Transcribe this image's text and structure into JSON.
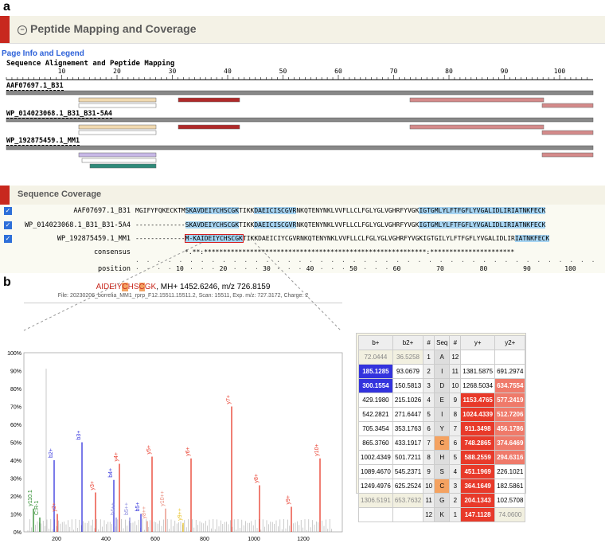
{
  "panel_a": {
    "label": "a",
    "header_title": "Peptide Mapping and Coverage",
    "page_info_link": "Page Info and Legend",
    "alignment_title": "Sequence Alignement and Peptide Mapping",
    "axis_ticks": [
      "10",
      "20",
      "30",
      "40",
      "50",
      "60",
      "70",
      "80",
      "90",
      "100"
    ],
    "protein_labels": [
      "AAF07697.1_B31",
      "WP_014023068.1_B31_B31-5A4",
      "WP_192875459.1_MM1"
    ],
    "coverage_header": "Sequence Coverage",
    "coverage_rows": [
      {
        "name": "AAF07697.1_B31",
        "seq_pre": "MGIFYFQKECKTM",
        "seq_hl1": "SKAVDEIYCHSCGK",
        "seq_mid1": "TIKK",
        "seq_hl2": "DAEICISCGVR",
        "seq_mid2": "NKQTENYNKLVVFLLCLFGLYGLVGHRFYVGK",
        "seq_hl3": "IGTGMLYLFTFGFLYVGALIDLIRIATNKFECK",
        "seq_post": ""
      },
      {
        "name": "WP_014023068.1_B31_B31-5A4",
        "seq_pre": "-------------",
        "seq_hl1": "SKAVDEIYCHSCGK",
        "seq_mid1": "TIKK",
        "seq_hl2": "DAEICISCGVR",
        "seq_mid2": "NKQTENYNKLVVFLLCLFGLYGLVGHRFYVGK",
        "seq_hl3": "IGTGMLYLFTFGFLYVGALIDLIRIATNKFECK",
        "seq_post": ""
      },
      {
        "name": "WP_192875459.1_MM1",
        "seq_pre": "-------------",
        "seq_hl1": "M-KAIDEIYCHSCGK",
        "seq_mid1": "TIKKDAEICIYCGVRNKQTENYNKLVVFLLCLFGLYGLVGHRFYVGKIGTGILYLFTFGFLYVGALIDLIR",
        "seq_hl2": "IATNKFECK",
        "seq_mid2": "",
        "seq_hl3": "",
        "seq_post": ""
      }
    ],
    "consensus_label": "consensus",
    "consensus_seq": "*.**:**********************************************************:**********************",
    "position_label": "position",
    "position_ticks": [
      "10",
      "20",
      "30",
      "40",
      "50",
      "60",
      "70",
      "80",
      "90",
      "100"
    ]
  },
  "panel_b": {
    "label": "b",
    "peptide_title": "AIDEIY C HS C GK, MH+ 1452.6246, m/z 726.8159",
    "peptide_prefix": "AIDEIY",
    "peptide_c1": "C",
    "peptide_mid": "HS",
    "peptide_c2": "C",
    "peptide_suffix": "GK",
    "peptide_rest": ", MH+ 1452.6246, m/z 726.8159",
    "file_info": "File: 20230206_borrelia_MM1_rprp_F12.15511.15511.2, Scan: 15511, Exp. m/z: 727.3172, Charge: 2",
    "y_ticks": [
      "100%",
      "90%",
      "80%",
      "70%",
      "60%",
      "50%",
      "40%",
      "30%",
      "20%",
      "10%",
      "0%"
    ],
    "x_ticks": [
      "200",
      "400",
      "600",
      "800",
      "1000",
      "1200"
    ],
    "table_headers": [
      "b+",
      "b2+",
      "#",
      "Seq",
      "#",
      "y+",
      "y2+"
    ],
    "table_rows": [
      [
        "72.0444",
        "36.5258",
        "1",
        "A",
        "12",
        "",
        ""
      ],
      [
        "185.1285",
        "93.0679",
        "2",
        "I",
        "11",
        "1381.5875",
        "691.2974"
      ],
      [
        "300.1554",
        "150.5813",
        "3",
        "D",
        "10",
        "1268.5034",
        "634.7554"
      ],
      [
        "429.1980",
        "215.1026",
        "4",
        "E",
        "9",
        "1153.4765",
        "577.2419"
      ],
      [
        "542.2821",
        "271.6447",
        "5",
        "I",
        "8",
        "1024.4339",
        "512.7206"
      ],
      [
        "705.3454",
        "353.1763",
        "6",
        "Y",
        "7",
        "911.3498",
        "456.1786"
      ],
      [
        "865.3760",
        "433.1917",
        "7",
        "C",
        "6",
        "748.2865",
        "374.6469"
      ],
      [
        "1002.4349",
        "501.7211",
        "8",
        "H",
        "5",
        "588.2559",
        "294.6316"
      ],
      [
        "1089.4670",
        "545.2371",
        "9",
        "S",
        "4",
        "451.1969",
        "226.1021"
      ],
      [
        "1249.4976",
        "625.2524",
        "10",
        "C",
        "3",
        "364.1649",
        "182.5861"
      ],
      [
        "1306.5191",
        "653.7632",
        "11",
        "G",
        "2",
        "204.1343",
        "102.5708"
      ],
      [
        "",
        "",
        "12",
        "K",
        "1",
        "147.1128",
        "74.0600"
      ]
    ],
    "peak_labels": [
      "b2+",
      "b3+",
      "b4+",
      "b5+",
      "y2+",
      "y3+",
      "y4+",
      "y5+",
      "y6+",
      "y7+",
      "y8+",
      "y9+",
      "y10+",
      "y10++",
      "y8++",
      "b4++",
      "b5++",
      "y9++",
      "y110.1",
      "C:R-1"
    ]
  },
  "colors": {
    "header_red": "#c8281e",
    "header_bg": "#f4f2e6",
    "coverage_hl": "#a7d5f3",
    "b_ion": "#3333dd",
    "y_ion": "#e83a2a"
  }
}
